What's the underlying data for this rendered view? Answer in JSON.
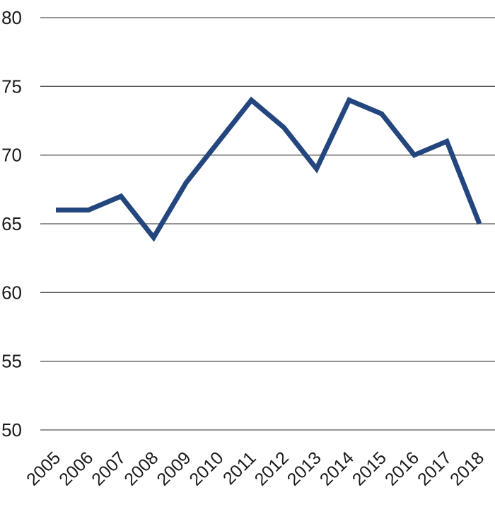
{
  "chart_data": {
    "type": "line",
    "title": "",
    "xlabel": "",
    "ylabel": "",
    "categories": [
      "2005",
      "2006",
      "2007",
      "2008",
      "2009",
      "2010",
      "2011",
      "2012",
      "2013",
      "2014",
      "2015",
      "2016",
      "2017",
      "2018"
    ],
    "series": [
      {
        "values": [
          66,
          66,
          67,
          64,
          68,
          71,
          74,
          72,
          69,
          74,
          73,
          70,
          71,
          65
        ],
        "color": "#23467e"
      }
    ],
    "ylim": [
      50,
      80
    ],
    "yticks": [
      "50",
      "55",
      "60",
      "65",
      "70",
      "75",
      "80"
    ],
    "grid": true,
    "gridline_color": "#555555",
    "legend": "none"
  }
}
